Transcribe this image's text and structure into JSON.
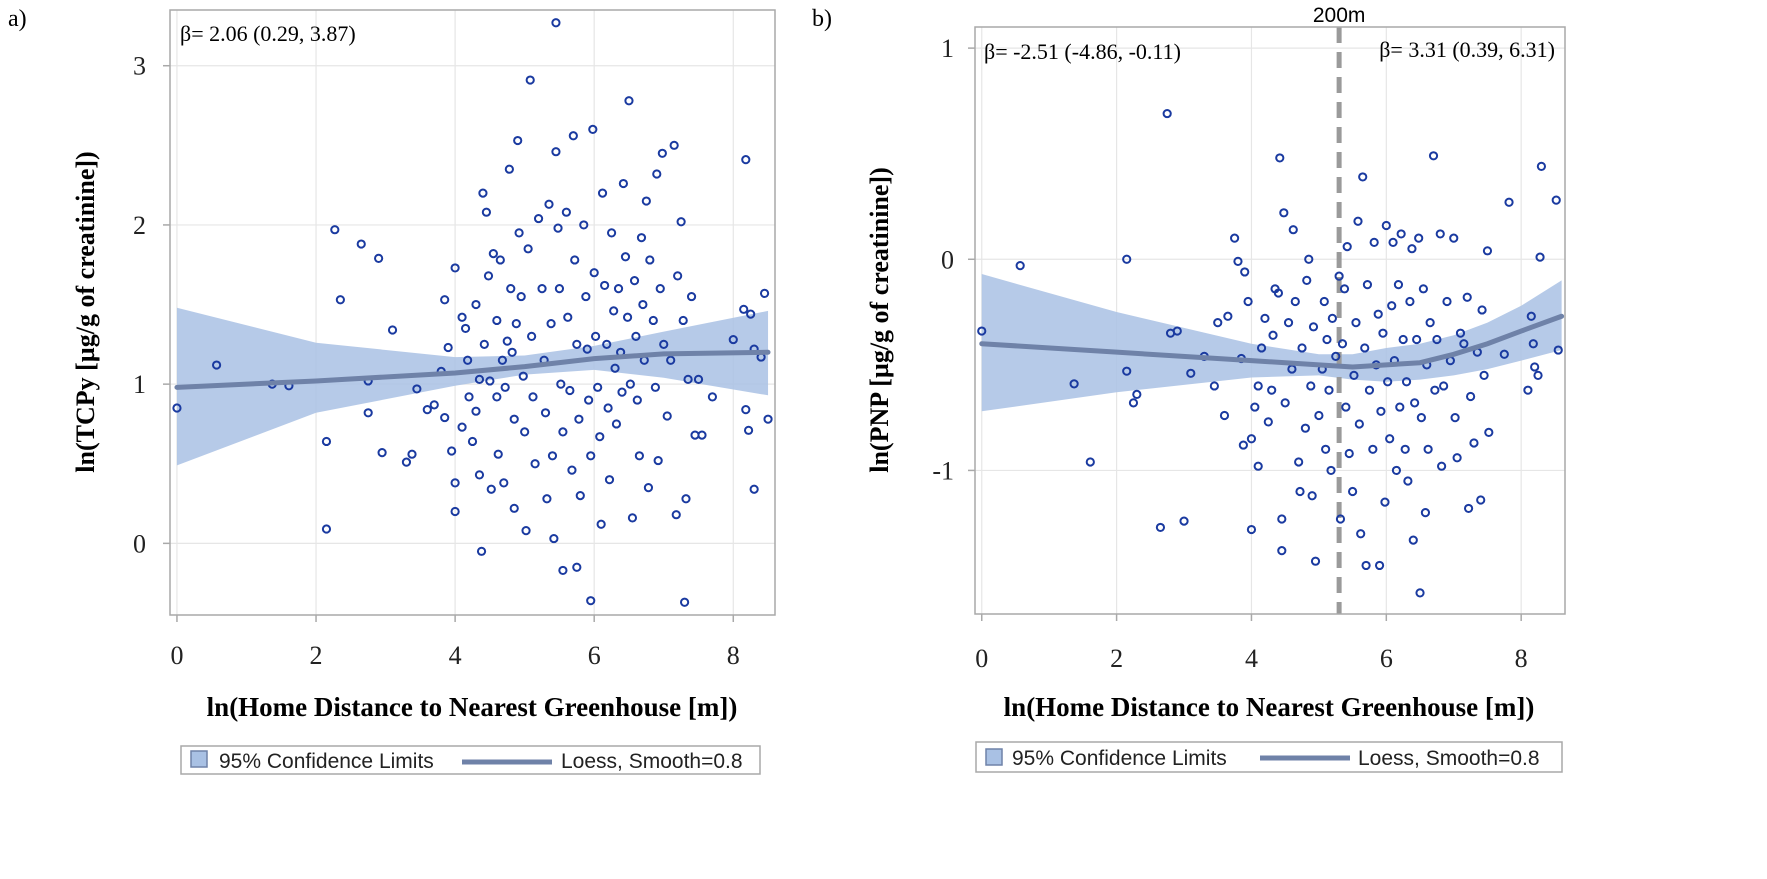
{
  "chart_data": [
    {
      "type": "scatter",
      "panel_label": "a)",
      "xlabel": "ln(Home Distance to Nearest Greenhouse [m])",
      "ylabel": "ln(TCPy [µg/g of creatinine])",
      "annotations": [
        "β= 2.06 (0.29, 3.87)"
      ],
      "xlim": [
        -0.1,
        8.6
      ],
      "ylim": [
        -0.45,
        3.35
      ],
      "xticks": [
        "0",
        "2",
        "4",
        "6",
        "8"
      ],
      "xtick_values": [
        0,
        2,
        4,
        6,
        8
      ],
      "yticks": [
        "0",
        "1",
        "2",
        "3"
      ],
      "ytick_values": [
        0,
        1,
        2,
        3
      ],
      "grid": true,
      "legend": [
        "95% Confidence Limits",
        "Loess, Smooth=0.8"
      ],
      "legend_position": "bottom",
      "colors": {
        "points": "#1a3aa0",
        "band": "#a9c1e4",
        "fit": "#6f82a8"
      },
      "fit": {
        "x": [
          0,
          2,
          4,
          5,
          6,
          7,
          8.5
        ],
        "y": [
          0.98,
          1.02,
          1.07,
          1.11,
          1.16,
          1.19,
          1.2
        ]
      },
      "band_lower": [
        0.49,
        0.82,
        0.99,
        1.06,
        1.09,
        1.04,
        0.93
      ],
      "band_upper": [
        1.48,
        1.26,
        1.17,
        1.18,
        1.24,
        1.33,
        1.46
      ],
      "points": [
        [
          0.0,
          0.85
        ],
        [
          0.57,
          1.12
        ],
        [
          1.37,
          1.0
        ],
        [
          1.61,
          0.99
        ],
        [
          2.15,
          0.64
        ],
        [
          2.15,
          0.09
        ],
        [
          2.27,
          1.97
        ],
        [
          2.35,
          1.53
        ],
        [
          2.65,
          1.88
        ],
        [
          2.75,
          1.02
        ],
        [
          2.75,
          0.82
        ],
        [
          2.9,
          1.79
        ],
        [
          2.95,
          0.57
        ],
        [
          3.1,
          1.34
        ],
        [
          3.3,
          0.51
        ],
        [
          3.38,
          0.56
        ],
        [
          3.45,
          0.97
        ],
        [
          3.6,
          0.84
        ],
        [
          3.7,
          0.87
        ],
        [
          3.8,
          1.08
        ],
        [
          3.85,
          1.53
        ],
        [
          3.85,
          0.79
        ],
        [
          3.9,
          1.23
        ],
        [
          3.95,
          0.58
        ],
        [
          4.0,
          1.73
        ],
        [
          4.0,
          0.38
        ],
        [
          4.0,
          0.2
        ],
        [
          4.1,
          1.42
        ],
        [
          4.1,
          0.73
        ],
        [
          4.15,
          1.35
        ],
        [
          4.18,
          1.15
        ],
        [
          4.2,
          0.92
        ],
        [
          4.25,
          0.64
        ],
        [
          4.3,
          1.5
        ],
        [
          4.3,
          0.83
        ],
        [
          4.35,
          1.03
        ],
        [
          4.35,
          0.43
        ],
        [
          4.38,
          -0.05
        ],
        [
          4.4,
          2.2
        ],
        [
          4.42,
          1.25
        ],
        [
          4.45,
          2.08
        ],
        [
          4.48,
          1.68
        ],
        [
          4.5,
          1.02
        ],
        [
          4.52,
          0.34
        ],
        [
          4.55,
          1.82
        ],
        [
          4.6,
          1.4
        ],
        [
          4.6,
          0.92
        ],
        [
          4.62,
          0.56
        ],
        [
          4.65,
          1.78
        ],
        [
          4.68,
          1.15
        ],
        [
          4.7,
          0.38
        ],
        [
          4.72,
          0.98
        ],
        [
          4.75,
          1.27
        ],
        [
          4.78,
          2.35
        ],
        [
          4.8,
          1.6
        ],
        [
          4.82,
          1.2
        ],
        [
          4.85,
          0.78
        ],
        [
          4.85,
          0.22
        ],
        [
          4.88,
          1.38
        ],
        [
          4.9,
          2.53
        ],
        [
          4.92,
          1.95
        ],
        [
          4.95,
          1.55
        ],
        [
          4.98,
          1.05
        ],
        [
          5.0,
          0.7
        ],
        [
          5.02,
          0.08
        ],
        [
          5.05,
          1.85
        ],
        [
          5.08,
          2.91
        ],
        [
          5.1,
          1.3
        ],
        [
          5.12,
          0.92
        ],
        [
          5.15,
          0.5
        ],
        [
          5.2,
          2.04
        ],
        [
          5.25,
          1.6
        ],
        [
          5.28,
          1.15
        ],
        [
          5.3,
          0.82
        ],
        [
          5.32,
          0.28
        ],
        [
          5.35,
          2.13
        ],
        [
          5.38,
          1.38
        ],
        [
          5.4,
          0.55
        ],
        [
          5.42,
          0.03
        ],
        [
          5.45,
          3.27
        ],
        [
          5.45,
          2.46
        ],
        [
          5.48,
          1.98
        ],
        [
          5.5,
          1.6
        ],
        [
          5.52,
          1.0
        ],
        [
          5.55,
          0.7
        ],
        [
          5.55,
          -0.17
        ],
        [
          5.6,
          2.08
        ],
        [
          5.62,
          1.42
        ],
        [
          5.65,
          0.96
        ],
        [
          5.68,
          0.46
        ],
        [
          5.7,
          2.56
        ],
        [
          5.72,
          1.78
        ],
        [
          5.75,
          1.25
        ],
        [
          5.75,
          -0.15
        ],
        [
          5.78,
          0.78
        ],
        [
          5.8,
          0.3
        ],
        [
          5.85,
          2.0
        ],
        [
          5.88,
          1.55
        ],
        [
          5.9,
          1.22
        ],
        [
          5.92,
          0.9
        ],
        [
          5.95,
          0.55
        ],
        [
          5.95,
          -0.36
        ],
        [
          5.98,
          2.6
        ],
        [
          6.0,
          1.7
        ],
        [
          6.02,
          1.3
        ],
        [
          6.05,
          0.98
        ],
        [
          6.08,
          0.67
        ],
        [
          6.1,
          0.12
        ],
        [
          6.12,
          2.2
        ],
        [
          6.15,
          1.62
        ],
        [
          6.18,
          1.25
        ],
        [
          6.2,
          0.85
        ],
        [
          6.22,
          0.4
        ],
        [
          6.25,
          1.95
        ],
        [
          6.28,
          1.46
        ],
        [
          6.3,
          1.1
        ],
        [
          6.32,
          0.75
        ],
        [
          6.35,
          1.6
        ],
        [
          6.38,
          1.2
        ],
        [
          6.4,
          0.95
        ],
        [
          6.42,
          2.26
        ],
        [
          6.45,
          1.8
        ],
        [
          6.48,
          1.42
        ],
        [
          6.5,
          2.78
        ],
        [
          6.52,
          1.0
        ],
        [
          6.55,
          0.16
        ],
        [
          6.58,
          1.65
        ],
        [
          6.6,
          1.3
        ],
        [
          6.62,
          0.9
        ],
        [
          6.65,
          0.55
        ],
        [
          6.68,
          1.92
        ],
        [
          6.7,
          1.5
        ],
        [
          6.72,
          1.15
        ],
        [
          6.75,
          2.15
        ],
        [
          6.78,
          0.35
        ],
        [
          6.8,
          1.78
        ],
        [
          6.85,
          1.4
        ],
        [
          6.88,
          0.98
        ],
        [
          6.9,
          2.32
        ],
        [
          6.92,
          0.52
        ],
        [
          6.95,
          1.6
        ],
        [
          6.98,
          2.45
        ],
        [
          7.0,
          1.25
        ],
        [
          7.05,
          0.8
        ],
        [
          7.1,
          1.15
        ],
        [
          7.15,
          2.5
        ],
        [
          7.18,
          0.18
        ],
        [
          7.2,
          1.68
        ],
        [
          7.25,
          2.02
        ],
        [
          7.28,
          1.4
        ],
        [
          7.3,
          -0.37
        ],
        [
          7.32,
          0.28
        ],
        [
          7.35,
          1.03
        ],
        [
          7.4,
          1.55
        ],
        [
          7.45,
          0.68
        ],
        [
          7.5,
          1.03
        ],
        [
          7.55,
          0.68
        ],
        [
          7.7,
          0.92
        ],
        [
          8.0,
          1.28
        ],
        [
          8.15,
          1.47
        ],
        [
          8.18,
          2.41
        ],
        [
          8.18,
          0.84
        ],
        [
          8.22,
          0.71
        ],
        [
          8.25,
          1.44
        ],
        [
          8.3,
          1.22
        ],
        [
          8.3,
          0.34
        ],
        [
          8.45,
          1.57
        ],
        [
          8.5,
          0.78
        ],
        [
          8.4,
          1.17
        ]
      ]
    },
    {
      "type": "scatter",
      "panel_label": "b)",
      "xlabel": "ln(Home Distance to Nearest Greenhouse [m])",
      "ylabel": "ln(PNP [µg/g of creatinine])",
      "annotations": [
        "β= -2.51 (-4.86, -0.11)",
        "β= 3.31 (0.39, 6.31)",
        "200m"
      ],
      "reference_line_x": 5.3,
      "xlim": [
        -0.1,
        8.65
      ],
      "ylim": [
        -1.68,
        1.1
      ],
      "xticks": [
        "0",
        "2",
        "4",
        "6",
        "8"
      ],
      "xtick_values": [
        0,
        2,
        4,
        6,
        8
      ],
      "yticks": [
        "-1",
        "0",
        "1"
      ],
      "ytick_values": [
        -1,
        0,
        1
      ],
      "grid": true,
      "legend": [
        "95% Confidence Limits",
        "Loess, Smooth=0.8"
      ],
      "legend_position": "bottom",
      "colors": {
        "points": "#1a3aa0",
        "band": "#a9c1e4",
        "fit": "#6f82a8",
        "reference_line": "#9a9a9a"
      },
      "fit": {
        "x": [
          0,
          2,
          4,
          5,
          5.5,
          6,
          6.5,
          7,
          7.5,
          8,
          8.6
        ],
        "y": [
          -0.4,
          -0.44,
          -0.48,
          -0.5,
          -0.51,
          -0.5,
          -0.49,
          -0.45,
          -0.4,
          -0.34,
          -0.27
        ]
      },
      "band_lower": [
        -0.72,
        -0.63,
        -0.56,
        -0.55,
        -0.57,
        -0.58,
        -0.57,
        -0.55,
        -0.52,
        -0.48,
        -0.43
      ],
      "band_upper": [
        -0.07,
        -0.25,
        -0.4,
        -0.45,
        -0.45,
        -0.42,
        -0.4,
        -0.36,
        -0.3,
        -0.22,
        -0.1
      ],
      "points": [
        [
          0.0,
          -0.34
        ],
        [
          0.57,
          -0.03
        ],
        [
          1.37,
          -0.59
        ],
        [
          1.61,
          -0.96
        ],
        [
          2.15,
          0.0
        ],
        [
          2.15,
          -0.53
        ],
        [
          2.25,
          -0.68
        ],
        [
          2.3,
          -0.64
        ],
        [
          2.65,
          -1.27
        ],
        [
          2.75,
          0.69
        ],
        [
          2.8,
          -0.35
        ],
        [
          2.9,
          -0.34
        ],
        [
          3.0,
          -1.24
        ],
        [
          3.1,
          -0.54
        ],
        [
          3.3,
          -0.46
        ],
        [
          3.45,
          -0.6
        ],
        [
          3.5,
          -0.3
        ],
        [
          3.6,
          -0.74
        ],
        [
          3.65,
          -0.27
        ],
        [
          3.75,
          0.1
        ],
        [
          3.8,
          -0.01
        ],
        [
          3.85,
          -0.47
        ],
        [
          3.88,
          -0.88
        ],
        [
          3.9,
          -0.06
        ],
        [
          3.95,
          -0.2
        ],
        [
          4.0,
          -0.85
        ],
        [
          4.0,
          -1.28
        ],
        [
          4.05,
          -0.7
        ],
        [
          4.1,
          -0.98
        ],
        [
          4.1,
          -0.6
        ],
        [
          4.15,
          -0.42
        ],
        [
          4.2,
          -0.28
        ],
        [
          4.25,
          -0.77
        ],
        [
          4.3,
          -0.62
        ],
        [
          4.32,
          -0.36
        ],
        [
          4.35,
          -0.14
        ],
        [
          4.4,
          -0.16
        ],
        [
          4.42,
          0.48
        ],
        [
          4.45,
          -1.23
        ],
        [
          4.45,
          -1.38
        ],
        [
          4.48,
          0.22
        ],
        [
          4.5,
          -0.68
        ],
        [
          4.55,
          -0.3
        ],
        [
          4.6,
          -0.52
        ],
        [
          4.62,
          0.14
        ],
        [
          4.65,
          -0.2
        ],
        [
          4.7,
          -0.96
        ],
        [
          4.72,
          -1.1
        ],
        [
          4.75,
          -0.42
        ],
        [
          4.8,
          -0.8
        ],
        [
          4.82,
          -0.1
        ],
        [
          4.85,
          0.0
        ],
        [
          4.88,
          -0.6
        ],
        [
          4.9,
          -1.12
        ],
        [
          4.92,
          -0.32
        ],
        [
          4.95,
          -1.43
        ],
        [
          5.0,
          -0.74
        ],
        [
          5.05,
          -0.52
        ],
        [
          5.08,
          -0.2
        ],
        [
          5.1,
          -0.9
        ],
        [
          5.12,
          -0.38
        ],
        [
          5.15,
          -0.62
        ],
        [
          5.18,
          -1.0
        ],
        [
          5.2,
          -0.28
        ],
        [
          5.25,
          -0.46
        ],
        [
          5.3,
          -0.08
        ],
        [
          5.32,
          -1.23
        ],
        [
          5.35,
          -0.4
        ],
        [
          5.38,
          -0.14
        ],
        [
          5.4,
          -0.7
        ],
        [
          5.42,
          0.06
        ],
        [
          5.45,
          -0.92
        ],
        [
          5.5,
          -1.1
        ],
        [
          5.52,
          -0.55
        ],
        [
          5.55,
          -0.3
        ],
        [
          5.58,
          0.18
        ],
        [
          5.6,
          -0.78
        ],
        [
          5.62,
          -1.3
        ],
        [
          5.65,
          0.39
        ],
        [
          5.68,
          -0.42
        ],
        [
          5.7,
          -1.45
        ],
        [
          5.72,
          -0.12
        ],
        [
          5.75,
          -0.62
        ],
        [
          5.8,
          -0.9
        ],
        [
          5.82,
          0.08
        ],
        [
          5.85,
          -0.5
        ],
        [
          5.88,
          -0.26
        ],
        [
          5.9,
          -1.45
        ],
        [
          5.92,
          -0.72
        ],
        [
          5.95,
          -0.35
        ],
        [
          5.98,
          -1.15
        ],
        [
          6.0,
          0.16
        ],
        [
          6.02,
          -0.58
        ],
        [
          6.05,
          -0.85
        ],
        [
          6.08,
          -0.22
        ],
        [
          6.1,
          0.08
        ],
        [
          6.12,
          -0.48
        ],
        [
          6.15,
          -1.0
        ],
        [
          6.18,
          -0.12
        ],
        [
          6.2,
          -0.7
        ],
        [
          6.22,
          0.12
        ],
        [
          6.25,
          -0.38
        ],
        [
          6.28,
          -0.9
        ],
        [
          6.3,
          -0.58
        ],
        [
          6.32,
          -1.05
        ],
        [
          6.35,
          -0.2
        ],
        [
          6.38,
          0.05
        ],
        [
          6.4,
          -1.33
        ],
        [
          6.42,
          -0.68
        ],
        [
          6.45,
          -0.38
        ],
        [
          6.48,
          0.1
        ],
        [
          6.5,
          -1.58
        ],
        [
          6.52,
          -0.75
        ],
        [
          6.55,
          -0.14
        ],
        [
          6.58,
          -1.2
        ],
        [
          6.6,
          -0.5
        ],
        [
          6.62,
          -0.9
        ],
        [
          6.65,
          -0.3
        ],
        [
          6.7,
          0.49
        ],
        [
          6.72,
          -0.62
        ],
        [
          6.75,
          -0.38
        ],
        [
          6.8,
          0.12
        ],
        [
          6.82,
          -0.98
        ],
        [
          6.85,
          -0.6
        ],
        [
          6.9,
          -0.2
        ],
        [
          6.95,
          -0.48
        ],
        [
          7.0,
          0.1
        ],
        [
          7.02,
          -0.75
        ],
        [
          7.05,
          -0.94
        ],
        [
          7.1,
          -0.35
        ],
        [
          7.15,
          -0.4
        ],
        [
          7.2,
          -0.18
        ],
        [
          7.22,
          -1.18
        ],
        [
          7.25,
          -0.65
        ],
        [
          7.3,
          -0.87
        ],
        [
          7.35,
          -0.44
        ],
        [
          7.4,
          -1.14
        ],
        [
          7.42,
          -0.24
        ],
        [
          7.45,
          -0.55
        ],
        [
          7.5,
          0.04
        ],
        [
          7.52,
          -0.82
        ],
        [
          7.75,
          -0.45
        ],
        [
          7.82,
          0.27
        ],
        [
          8.1,
          -0.62
        ],
        [
          8.15,
          -0.27
        ],
        [
          8.18,
          -0.4
        ],
        [
          8.2,
          -0.51
        ],
        [
          8.25,
          -0.55
        ],
        [
          8.28,
          0.01
        ],
        [
          8.3,
          0.44
        ],
        [
          8.52,
          0.28
        ],
        [
          8.55,
          -0.43
        ]
      ]
    }
  ]
}
